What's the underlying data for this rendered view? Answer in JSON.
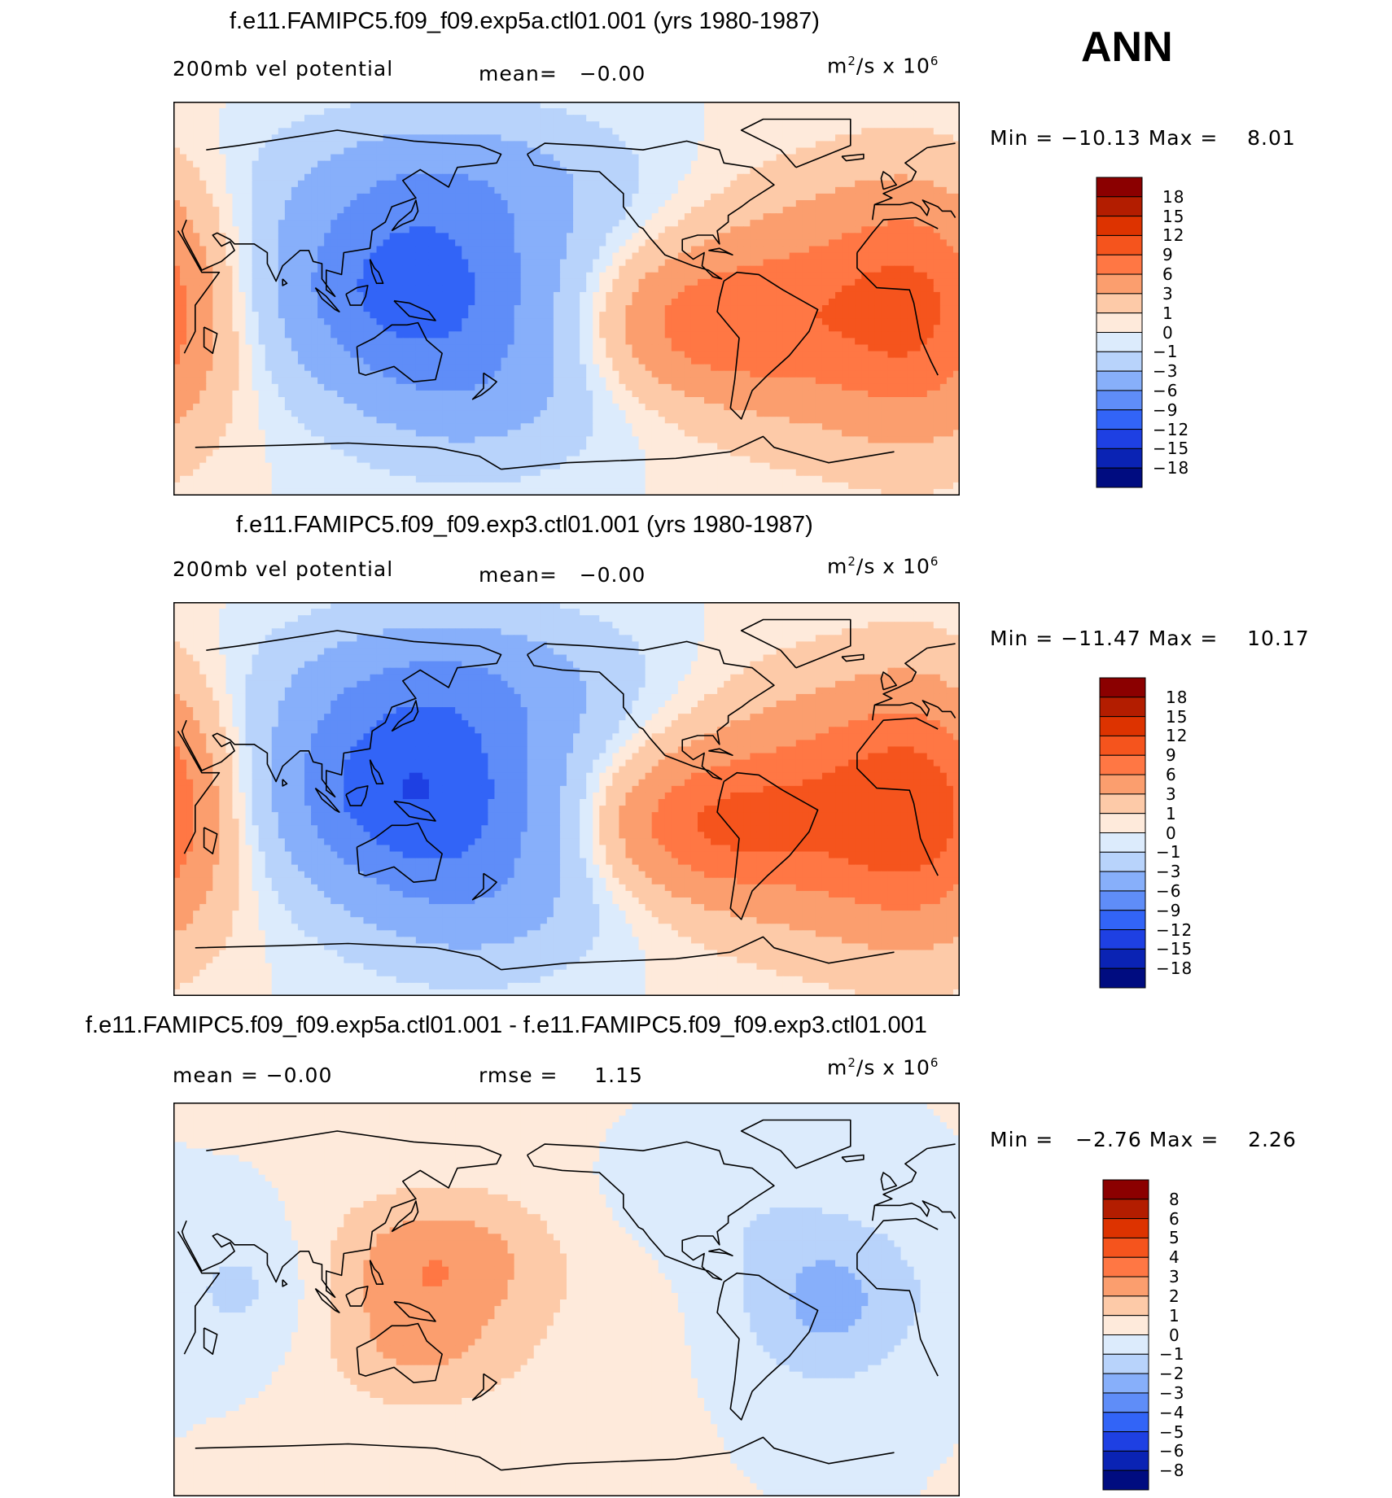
{
  "season": "ANN",
  "chart_data": [
    {
      "type": "heatmap",
      "title": "f.e11.FAMIPC5.f09_f09.exp5a.ctl01.001 (yrs 1980-1987)",
      "subtitle_left": "200mb vel potential",
      "stat1_label": "mean=",
      "stat1_value": "−0.00",
      "units_base": "m",
      "units_exp": "2",
      "units_mid": "/s x 10",
      "units_exp2": "6",
      "min_label": "Min =",
      "min_value": "−10.13",
      "max_label": "Max =",
      "max_value": "8.01",
      "levels": [
        "18",
        "15",
        "12",
        "9",
        "6",
        "3",
        "1",
        "0",
        "−1",
        "−3",
        "−6",
        "−9",
        "−12",
        "−15",
        "−18"
      ],
      "colors": [
        "#8b0000",
        "#b31d00",
        "#dd3300",
        "#f5541d",
        "#ff7744",
        "#fb9e6e",
        "#fdcaa8",
        "#feeadb",
        "#dcebfc",
        "#b8d3fb",
        "#87affa",
        "#5f8df8",
        "#3264f7",
        "#1e40e3",
        "#0a23b4",
        "#000c80"
      ],
      "field": {
        "mode": "vp",
        "amp": 10.1
      }
    },
    {
      "type": "heatmap",
      "title": "f.e11.FAMIPC5.f09_f09.exp3.ctl01.001 (yrs 1980-1987)",
      "subtitle_left": "200mb vel potential",
      "stat1_label": "mean=",
      "stat1_value": "−0.00",
      "units_base": "m",
      "units_exp": "2",
      "units_mid": "/s x 10",
      "units_exp2": "6",
      "min_label": "Min =",
      "min_value": "−11.47",
      "max_label": "Max =",
      "max_value": "10.17",
      "levels": [
        "18",
        "15",
        "12",
        "9",
        "6",
        "3",
        "1",
        "0",
        "−1",
        "−3",
        "−6",
        "−9",
        "−12",
        "−15",
        "−18"
      ],
      "colors": [
        "#8b0000",
        "#b31d00",
        "#dd3300",
        "#f5541d",
        "#ff7744",
        "#fb9e6e",
        "#fdcaa8",
        "#feeadb",
        "#dcebfc",
        "#b8d3fb",
        "#87affa",
        "#5f8df8",
        "#3264f7",
        "#1e40e3",
        "#0a23b4",
        "#000c80"
      ],
      "field": {
        "mode": "vp",
        "amp": 11.5
      }
    },
    {
      "type": "heatmap",
      "title": "f.e11.FAMIPC5.f09_f09.exp5a.ctl01.001 - f.e11.FAMIPC5.f09_f09.exp3.ctl01.001",
      "subtitle_left": "mean =   −0.00",
      "stat1_label": "rmse =",
      "stat1_value": "1.15",
      "units_base": "m",
      "units_exp": "2",
      "units_mid": "/s x 10",
      "units_exp2": "6",
      "min_label": "Min =",
      "min_value": "−2.76",
      "max_label": "Max =",
      "max_value": "2.26",
      "levels": [
        "8",
        "6",
        "5",
        "4",
        "3",
        "2",
        "1",
        "0",
        "−1",
        "−2",
        "−3",
        "−4",
        "−5",
        "−6",
        "−8"
      ],
      "colors": [
        "#8b0000",
        "#b31d00",
        "#dd3300",
        "#f5541d",
        "#ff7744",
        "#fb9e6e",
        "#fdcaa8",
        "#feeadb",
        "#dcebfc",
        "#b8d3fb",
        "#87affa",
        "#5f8df8",
        "#3264f7",
        "#1e40e3",
        "#0a23b4",
        "#000c80"
      ],
      "field": {
        "mode": "diff",
        "amp": 2.6
      }
    }
  ]
}
